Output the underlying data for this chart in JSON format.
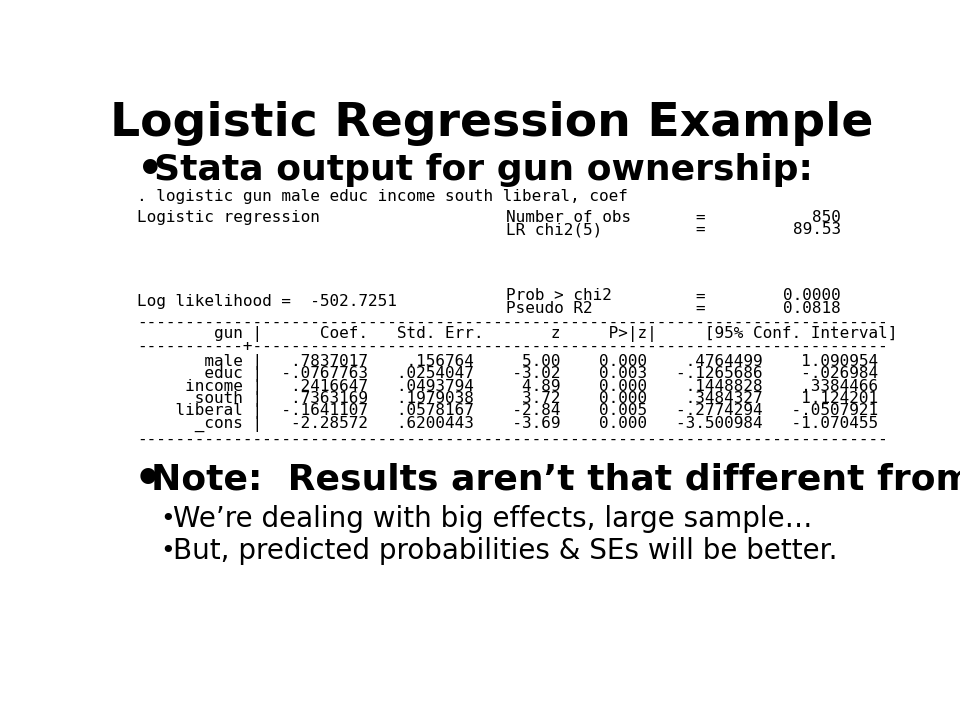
{
  "title": "Logistic Regression Example",
  "background_color": "#ffffff",
  "bullet1": "Stata output for gun ownership:",
  "stata_cmd": ". logistic gun male educ income south liberal, coef",
  "header_left": "Logistic regression",
  "log_likelihood": "Log likelihood =  -502.7251",
  "stats_right": [
    [
      "Number of obs",
      "=",
      "850"
    ],
    [
      "LR chi2(5)",
      "=",
      "89.53"
    ],
    [
      "Prob > chi2",
      "=",
      "0.0000"
    ],
    [
      "Pseudo R2",
      "=",
      "0.0818"
    ]
  ],
  "sep_line": "------------------------------------------------------------------------------",
  "sep_plus": "-----------+------------------------------------------------------------------",
  "col_header": "        gun |      Coef.   Std. Err.       z     P>|z|     [95% Conf. Interval]",
  "rows": [
    "       male |   .7837017    .156764     5.00    0.000    .4764499    1.090954",
    "       educ |  -.0767763   .0254047    -3.02    0.003   -.1265686    -.026984",
    "     income |   .2416647   .0493794     4.89    0.000    .1448828    .3384466",
    "      south |   .7363169   .1979038     3.72    0.000    .3484327    1.124201",
    "    liberal |  -.1641107   .0578167    -2.84    0.005   -.2774294   -.0507921",
    "      _cons |   -2.28572   .6200443    -3.69    0.000   -3.500984   -1.070455"
  ],
  "note_bullet": "Note:  Results aren’t that different from LPM",
  "sub_bullet1": "We’re dealing with big effects, large sample…",
  "sub_bullet2": "But, predicted probabilities & SEs will be better.",
  "title_fontsize": 34,
  "bullet1_fontsize": 26,
  "mono_fontsize": 11.5,
  "note_fontsize": 26,
  "sub_fontsize": 20
}
